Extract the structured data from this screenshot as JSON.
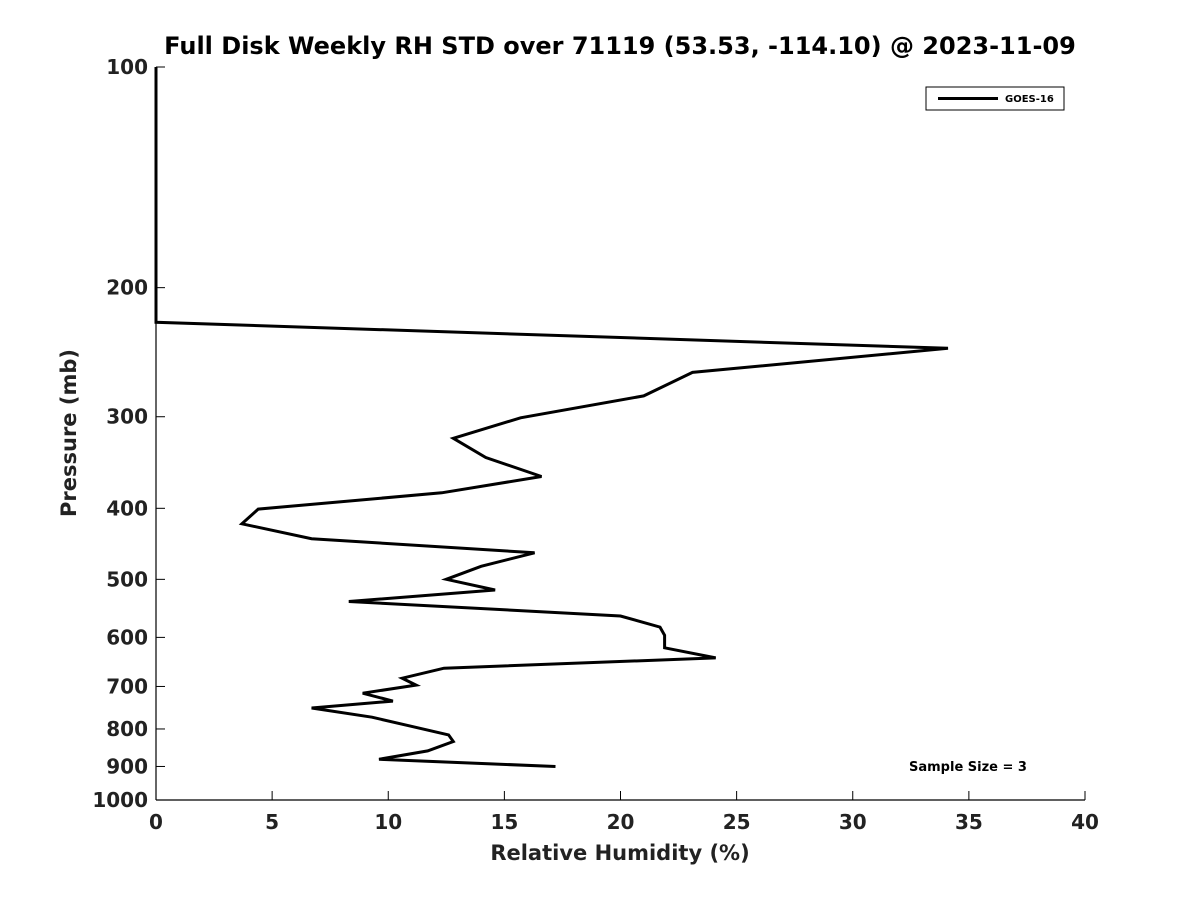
{
  "chart_data": {
    "type": "line",
    "title": "Full Disk Weekly RH STD over 71119 (53.53, -114.10) @ 2023-11-09",
    "xlabel": "Relative Humidity (%)",
    "ylabel": "Pressure (mb)",
    "xlim": [
      0,
      40
    ],
    "ylim": [
      100,
      1000
    ],
    "yscale": "log",
    "y_reversed": true,
    "grid": false,
    "x_ticks": [
      "0",
      "5",
      "10",
      "15",
      "20",
      "25",
      "30",
      "35",
      "40"
    ],
    "y_ticks": [
      "100",
      "200",
      "300",
      "400",
      "500",
      "600",
      "700",
      "800",
      "900",
      "1000"
    ],
    "legend_position": "top-right",
    "annotation": "Sample Size = 3",
    "series": [
      {
        "name": "GOES-16",
        "color": "#000000",
        "x": [
          0,
          0,
          0,
          0,
          0,
          0,
          0,
          34.1,
          23.1,
          21.0,
          15.7,
          12.8,
          14.2,
          16.6,
          12.3,
          4.4,
          3.7,
          6.7,
          16.3,
          14.0,
          12.5,
          14.6,
          8.3,
          20.0,
          21.7,
          21.9,
          21.9,
          24.1,
          12.4,
          10.6,
          11.2,
          8.9,
          10.2,
          6.7,
          9.3,
          10.9,
          12.6,
          12.8,
          11.7,
          9.6,
          17.2
        ],
        "y": [
          100,
          115,
          130,
          150,
          170,
          190,
          223,
          242,
          261,
          281,
          301,
          321,
          341,
          362,
          381,
          401,
          420,
          440,
          460,
          480,
          500,
          517,
          536,
          561,
          581,
          596,
          620,
          640,
          661,
          682,
          697,
          715,
          733,
          749,
          771,
          792,
          815,
          832,
          857,
          880,
          900
        ]
      }
    ]
  }
}
